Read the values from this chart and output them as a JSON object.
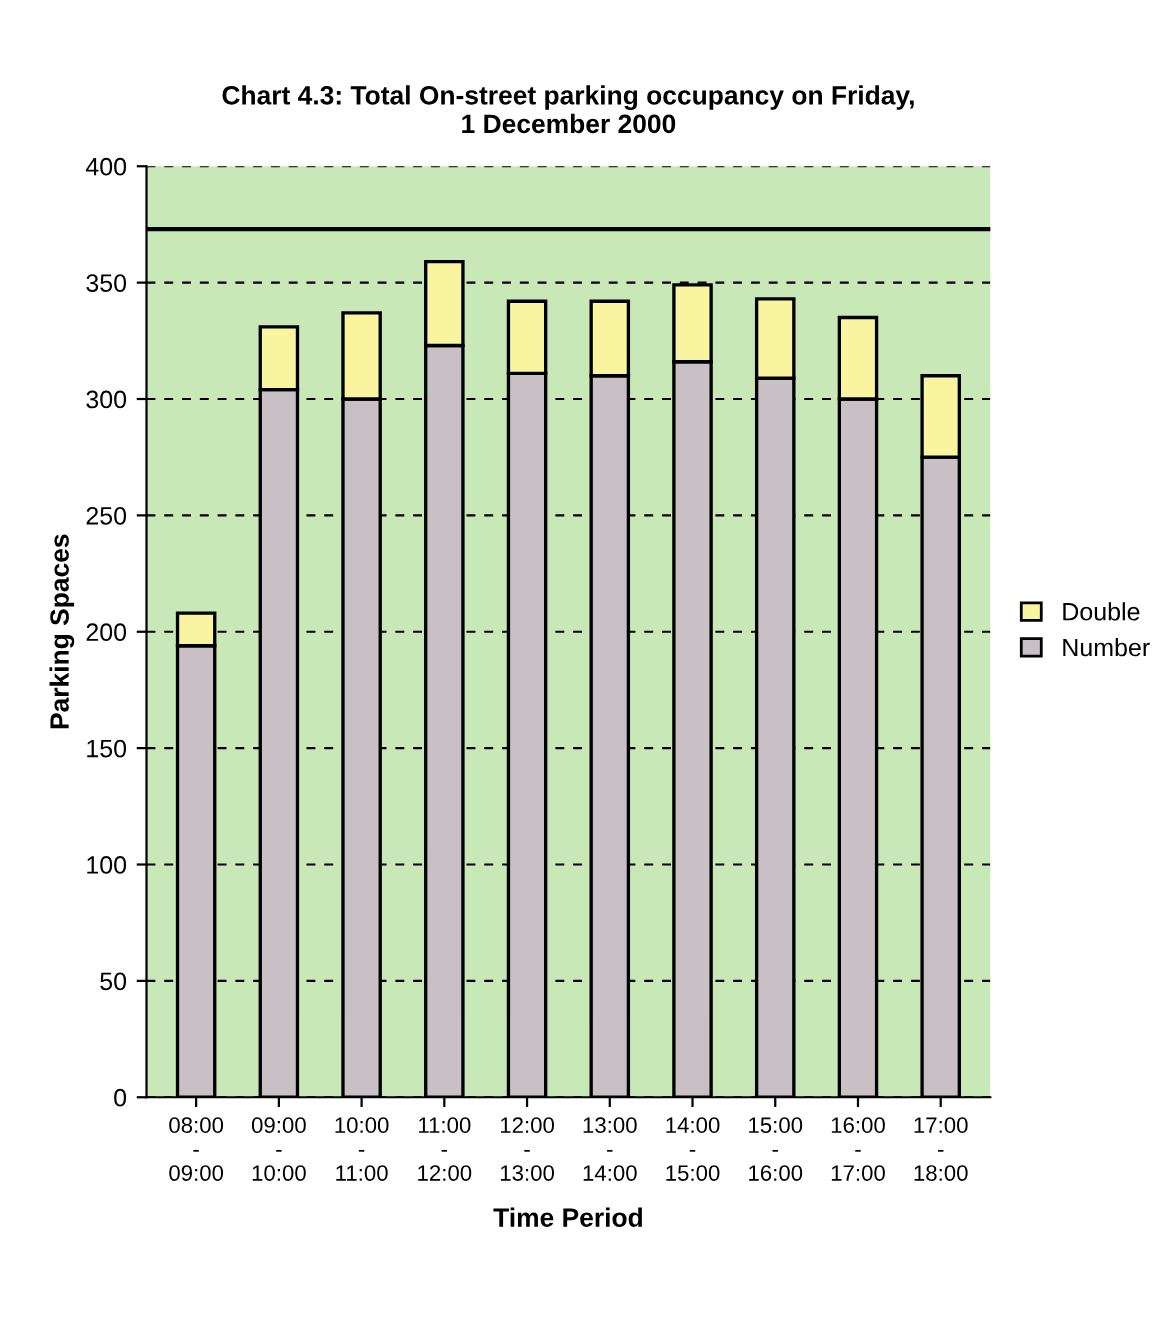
{
  "chart_data": {
    "type": "bar",
    "stacked": true,
    "title": "Chart 4.3: Total On-street parking occupancy on Friday,\n1 December 2000",
    "xlabel": "Time Period",
    "ylabel": "Parking Spaces",
    "categories": [
      "08:00\n-\n09:00",
      "09:00\n-\n10:00",
      "10:00\n-\n11:00",
      "11:00\n-\n12:00",
      "12:00\n-\n13:00",
      "13:00\n-\n14:00",
      "14:00\n-\n15:00",
      "15:00\n-\n16:00",
      "16:00\n-\n17:00",
      "17:00\n-\n18:00"
    ],
    "series": [
      {
        "name": "Number",
        "color": "#c8c0c4",
        "values": [
          194,
          304,
          300,
          323,
          311,
          310,
          316,
          309,
          300,
          275
        ]
      },
      {
        "name": "Double",
        "color": "#f8f4a0",
        "values": [
          14,
          27,
          37,
          36,
          31,
          32,
          33,
          34,
          35,
          35
        ]
      }
    ],
    "ylim": [
      0,
      400
    ],
    "yticks": [
      0,
      50,
      100,
      150,
      200,
      250,
      300,
      350,
      400
    ],
    "grid": "y",
    "legend": "right",
    "ref_lines": [
      {
        "axis": "y",
        "value": 373,
        "color": "#000000",
        "line_style": "solid"
      }
    ]
  }
}
